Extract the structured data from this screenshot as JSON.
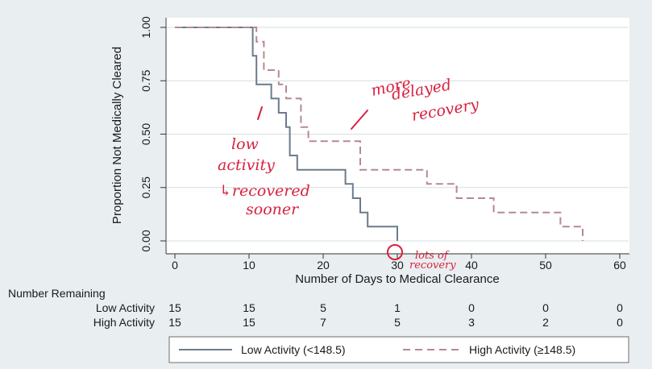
{
  "chart_data": {
    "type": "line",
    "subtype": "kaplan-meier step",
    "xlabel": "Number of Days to Medical Clearance",
    "ylabel": "Proportion Not Medically Cleared",
    "xlim": [
      0,
      60
    ],
    "ylim": [
      0,
      1
    ],
    "x_ticks": [
      0,
      10,
      20,
      30,
      40,
      50,
      60
    ],
    "y_ticks": [
      0,
      0.25,
      0.5,
      0.75,
      1
    ],
    "y_tick_labels": [
      "0.00",
      "0.25",
      "0.50",
      "0.75",
      "1.00"
    ],
    "grid": "horizontal",
    "series": [
      {
        "name": "Low Activity (<148.5)",
        "style": "solid",
        "color": "#6b7b8c",
        "steps": [
          [
            0,
            1.0
          ],
          [
            10.5,
            0.867
          ],
          [
            11,
            0.733
          ],
          [
            13,
            0.667
          ],
          [
            14,
            0.6
          ],
          [
            15,
            0.533
          ],
          [
            15.5,
            0.4
          ],
          [
            16.5,
            0.333
          ],
          [
            23,
            0.267
          ],
          [
            24,
            0.2
          ],
          [
            25,
            0.133
          ],
          [
            26,
            0.067
          ],
          [
            30,
            0.0
          ]
        ]
      },
      {
        "name": "High Activity (≥148.5)",
        "style": "dashed",
        "color": "#b48a92",
        "steps": [
          [
            0,
            1.0
          ],
          [
            11,
            0.933
          ],
          [
            12,
            0.8
          ],
          [
            14,
            0.733
          ],
          [
            15,
            0.667
          ],
          [
            17,
            0.533
          ],
          [
            18,
            0.467
          ],
          [
            25,
            0.333
          ],
          [
            34,
            0.267
          ],
          [
            38,
            0.2
          ],
          [
            43,
            0.133
          ],
          [
            52,
            0.067
          ],
          [
            55,
            0.0
          ]
        ]
      }
    ],
    "risk_table": {
      "title": "Number Remaining",
      "times": [
        0,
        10,
        20,
        30,
        40,
        50,
        60
      ],
      "rows": [
        {
          "label": "Low Activity",
          "values": [
            "15",
            "15",
            "5",
            "1",
            "0",
            "0",
            "0"
          ]
        },
        {
          "label": "High Activity",
          "values": [
            "15",
            "15",
            "7",
            "5",
            "3",
            "2",
            "0"
          ]
        }
      ]
    },
    "legend": {
      "position": "bottom",
      "entries": [
        "Low Activity (<148.5)",
        "High Activity (≥148.5)"
      ]
    }
  },
  "annotations": {
    "more_delayed_1": "more",
    "more_delayed_2": "delayed",
    "more_delayed_3": "recovery",
    "low_activity_1": "low",
    "low_activity_2": "activity",
    "low_activity_3": "↳recovered",
    "low_activity_4": "sooner",
    "lots_1": "lots of",
    "lots_2": "recovery"
  },
  "colors": {
    "background": "#e9eef0",
    "plot_bg": "#ffffff",
    "annotation": "#d9213f"
  }
}
